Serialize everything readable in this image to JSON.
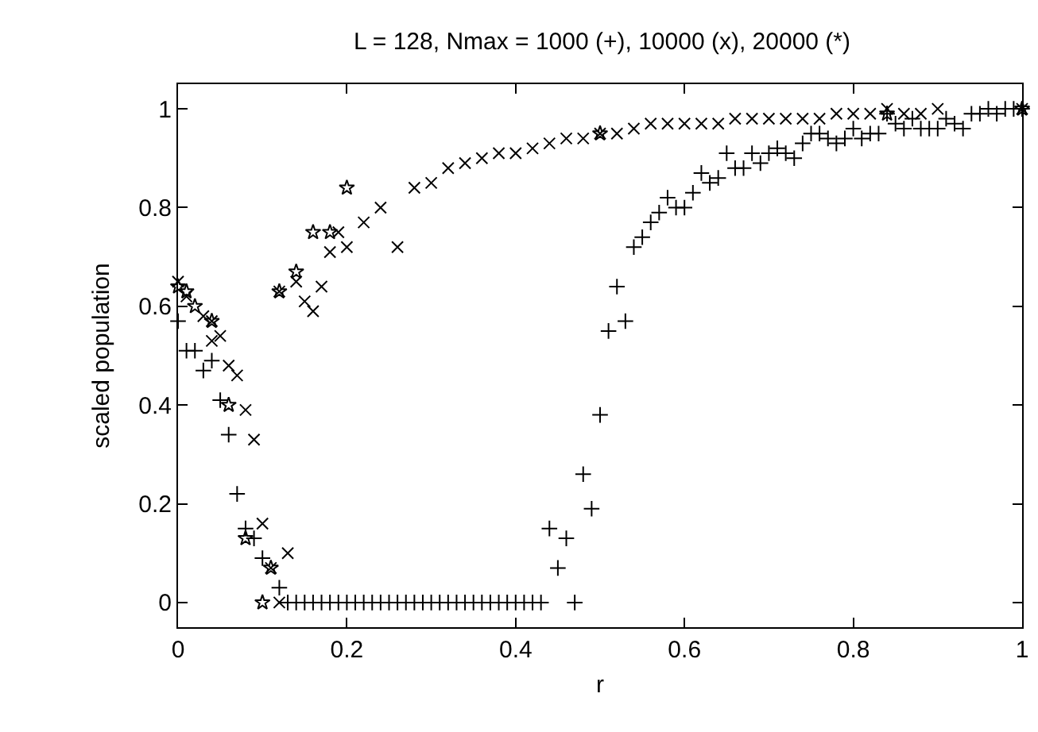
{
  "chart_data": {
    "type": "scatter",
    "title": "L = 128, Nmax = 1000 (+), 10000 (x), 20000 (*)",
    "xlabel": "r",
    "ylabel": "scaled population",
    "xlim": [
      0,
      1
    ],
    "ylim": [
      -0.05,
      1.05
    ],
    "xticks": [
      0,
      0.2,
      0.4,
      0.6,
      0.8,
      1
    ],
    "yticks": [
      0,
      0.2,
      0.4,
      0.6,
      0.8,
      1
    ],
    "series": [
      {
        "color": "#000000",
        "marker": "plus",
        "x": [
          0,
          0.01,
          0.02,
          0.03,
          0.04,
          0.05,
          0.06,
          0.07,
          0.08,
          0.09,
          0.1,
          0.12,
          0.13,
          0.14,
          0.15,
          0.16,
          0.17,
          0.18,
          0.19,
          0.2,
          0.21,
          0.22,
          0.23,
          0.24,
          0.25,
          0.26,
          0.27,
          0.28,
          0.29,
          0.3,
          0.31,
          0.32,
          0.33,
          0.34,
          0.35,
          0.36,
          0.37,
          0.38,
          0.39,
          0.4,
          0.41,
          0.42,
          0.43,
          0.44,
          0.45,
          0.46,
          0.47,
          0.48,
          0.49,
          0.5,
          0.51,
          0.52,
          0.53,
          0.54,
          0.55,
          0.56,
          0.57,
          0.58,
          0.59,
          0.6,
          0.61,
          0.62,
          0.63,
          0.64,
          0.65,
          0.66,
          0.67,
          0.68,
          0.69,
          0.7,
          0.71,
          0.72,
          0.73,
          0.74,
          0.75,
          0.76,
          0.77,
          0.78,
          0.79,
          0.8,
          0.81,
          0.82,
          0.83,
          0.84,
          0.85,
          0.86,
          0.87,
          0.88,
          0.89,
          0.9,
          0.91,
          0.92,
          0.93,
          0.94,
          0.95,
          0.96,
          0.97,
          0.98,
          0.99,
          1
        ],
        "values": [
          0.57,
          0.51,
          0.51,
          0.47,
          0.49,
          0.41,
          0.34,
          0.22,
          0.15,
          0.13,
          0.09,
          0.03,
          0,
          0,
          0,
          0,
          0,
          0,
          0,
          0,
          0,
          0,
          0,
          0,
          0,
          0,
          0,
          0,
          0,
          0,
          0,
          0,
          0,
          0,
          0,
          0,
          0,
          0,
          0,
          0,
          0,
          0,
          0,
          0.15,
          0.07,
          0.13,
          0,
          0.26,
          0.19,
          0.38,
          0.55,
          0.64,
          0.57,
          0.72,
          0.74,
          0.77,
          0.79,
          0.82,
          0.8,
          0.8,
          0.83,
          0.87,
          0.85,
          0.86,
          0.91,
          0.88,
          0.88,
          0.91,
          0.89,
          0.91,
          0.92,
          0.91,
          0.9,
          0.93,
          0.95,
          0.95,
          0.94,
          0.93,
          0.94,
          0.96,
          0.94,
          0.95,
          0.95,
          0.99,
          0.97,
          0.96,
          0.98,
          0.96,
          0.96,
          0.96,
          0.98,
          0.97,
          0.96,
          0.99,
          0.99,
          1.0,
          0.99,
          1.0,
          1.0,
          1.0
        ]
      },
      {
        "color": "#000000",
        "marker": "cross",
        "x": [
          0,
          0.01,
          0.03,
          0.04,
          0.04,
          0.05,
          0.06,
          0.07,
          0.08,
          0.09,
          0.1,
          0.11,
          0.12,
          0.13,
          0.12,
          0.14,
          0.15,
          0.16,
          0.17,
          0.18,
          0.19,
          0.2,
          0.22,
          0.24,
          0.26,
          0.28,
          0.3,
          0.32,
          0.34,
          0.36,
          0.38,
          0.4,
          0.42,
          0.44,
          0.46,
          0.48,
          0.5,
          0.52,
          0.54,
          0.56,
          0.58,
          0.6,
          0.62,
          0.64,
          0.66,
          0.68,
          0.7,
          0.72,
          0.74,
          0.76,
          0.78,
          0.8,
          0.82,
          0.84,
          0.86,
          0.88,
          0.9,
          1
        ],
        "values": [
          0.65,
          0.62,
          0.58,
          0.57,
          0.53,
          0.54,
          0.48,
          0.46,
          0.39,
          0.33,
          0.16,
          0.07,
          0,
          0.1,
          0.63,
          0.65,
          0.61,
          0.59,
          0.64,
          0.71,
          0.75,
          0.72,
          0.77,
          0.8,
          0.72,
          0.84,
          0.85,
          0.88,
          0.89,
          0.9,
          0.91,
          0.91,
          0.92,
          0.93,
          0.94,
          0.94,
          0.95,
          0.95,
          0.96,
          0.97,
          0.97,
          0.97,
          0.97,
          0.97,
          0.98,
          0.98,
          0.98,
          0.98,
          0.98,
          0.98,
          0.99,
          0.99,
          0.99,
          1.0,
          0.99,
          0.99,
          1.0,
          1.0
        ]
      },
      {
        "color": "#000000",
        "marker": "star",
        "x": [
          0,
          0.01,
          0.02,
          0.04,
          0.06,
          0.08,
          0.1,
          0.11,
          0.12,
          0.14,
          0.16,
          0.18,
          0.2,
          0.5,
          0.84,
          1
        ],
        "values": [
          0.64,
          0.63,
          0.6,
          0.57,
          0.4,
          0.13,
          0,
          0.07,
          0.63,
          0.67,
          0.75,
          0.75,
          0.84,
          0.95,
          0.99,
          1.0
        ]
      }
    ]
  }
}
